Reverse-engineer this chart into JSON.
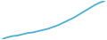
{
  "x": [
    0,
    1,
    2,
    3,
    4,
    5,
    6,
    7,
    8,
    9,
    10,
    11,
    12,
    13,
    14,
    15,
    16,
    17,
    18,
    19,
    20
  ],
  "y": [
    0.0,
    0.3,
    0.5,
    0.6,
    0.8,
    1.0,
    1.1,
    1.3,
    1.5,
    1.7,
    2.0,
    2.3,
    2.7,
    3.1,
    3.5,
    4.0,
    4.5,
    5.0,
    5.5,
    5.9,
    6.2
  ],
  "line_color": "#4bafd4",
  "linewidth": 1.3,
  "background_color": "#ffffff"
}
